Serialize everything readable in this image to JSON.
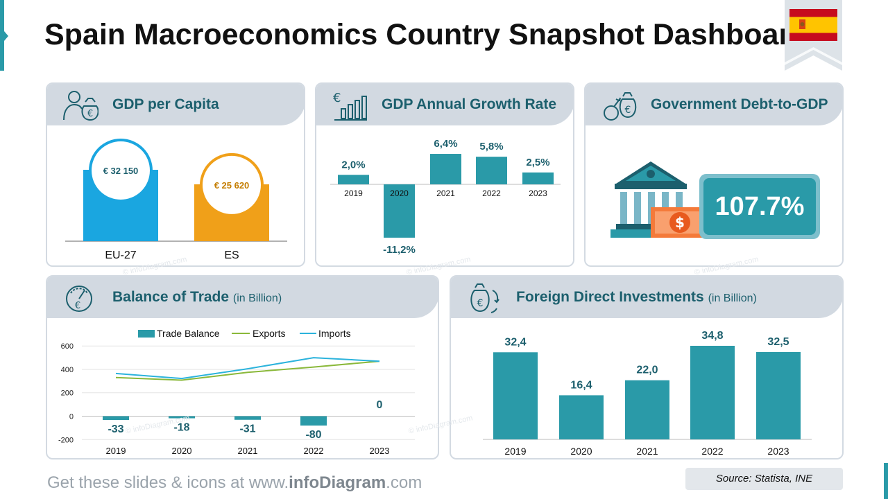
{
  "title": "Spain Macroeconomics Country Snapshot Dashboard",
  "colors": {
    "teal": "#2a9aa8",
    "dark_teal": "#1c5f6d",
    "blue": "#1aa6e0",
    "orange": "#f0a019",
    "header_bg": "#d2d9e1",
    "line_green": "#8ab83a",
    "line_blue": "#2bb3dc"
  },
  "gdp_per_capita": {
    "title": "GDP per Capita",
    "icon": "person-money-bag-icon",
    "chart_data": {
      "type": "bar",
      "categories": [
        "EU-27",
        "ES"
      ],
      "values": [
        32150,
        25620
      ],
      "value_labels": [
        "€ 32 150",
        "€ 25 620"
      ],
      "colors": [
        "#1aa6e0",
        "#f0a019"
      ]
    }
  },
  "gdp_growth": {
    "title": "GDP Annual Growth Rate",
    "icon": "euro-bar-chart-icon",
    "chart_data": {
      "type": "bar",
      "categories": [
        "2019",
        "2020",
        "2021",
        "2022",
        "2023"
      ],
      "values": [
        2.0,
        -11.2,
        6.4,
        5.8,
        2.5
      ],
      "value_labels": [
        "2,0%",
        "-11,2%",
        "6,4%",
        "5,8%",
        "2,5%"
      ],
      "ylabel": ""
    }
  },
  "debt": {
    "title": "Government Debt-to-GDP",
    "icon": "money-bag-bomb-icon",
    "value": "107.7%"
  },
  "trade": {
    "title": "Balance of Trade",
    "title_sub": "(in Billion)",
    "icon": "gauge-euro-icon",
    "chart_data": {
      "type": "bar",
      "categories": [
        "2019",
        "2020",
        "2021",
        "2022",
        "2023"
      ],
      "series": [
        {
          "name": "Trade Balance",
          "kind": "bar",
          "values": [
            -33,
            -18,
            -31,
            -80,
            0
          ]
        },
        {
          "name": "Exports",
          "kind": "line",
          "values": [
            330,
            308,
            375,
            420,
            470
          ]
        },
        {
          "name": "Imports",
          "kind": "line",
          "values": [
            365,
            322,
            405,
            500,
            470
          ]
        }
      ],
      "value_labels": [
        "-33",
        "-18",
        "-31",
        "-80",
        "0"
      ],
      "yticks": [
        "600",
        "400",
        "200",
        "0",
        "-200"
      ],
      "ylim": [
        -200,
        600
      ],
      "legend": "top-center"
    }
  },
  "fdi": {
    "title": "Foreign Direct Investments",
    "title_sub": "(in Billion)",
    "icon": "money-bag-cycle-icon",
    "chart_data": {
      "type": "bar",
      "categories": [
        "2019",
        "2020",
        "2021",
        "2022",
        "2023"
      ],
      "values": [
        32.4,
        16.4,
        22.0,
        34.8,
        32.5
      ],
      "value_labels": [
        "32,4",
        "16,4",
        "22,0",
        "34,8",
        "32,5"
      ]
    }
  },
  "footer": {
    "prefix": "Get these slides & icons at www.",
    "brand": "infoDiagram",
    "suffix": ".com",
    "source": "Source: Statista, INE"
  },
  "watermark": "© infoDiagram.com"
}
